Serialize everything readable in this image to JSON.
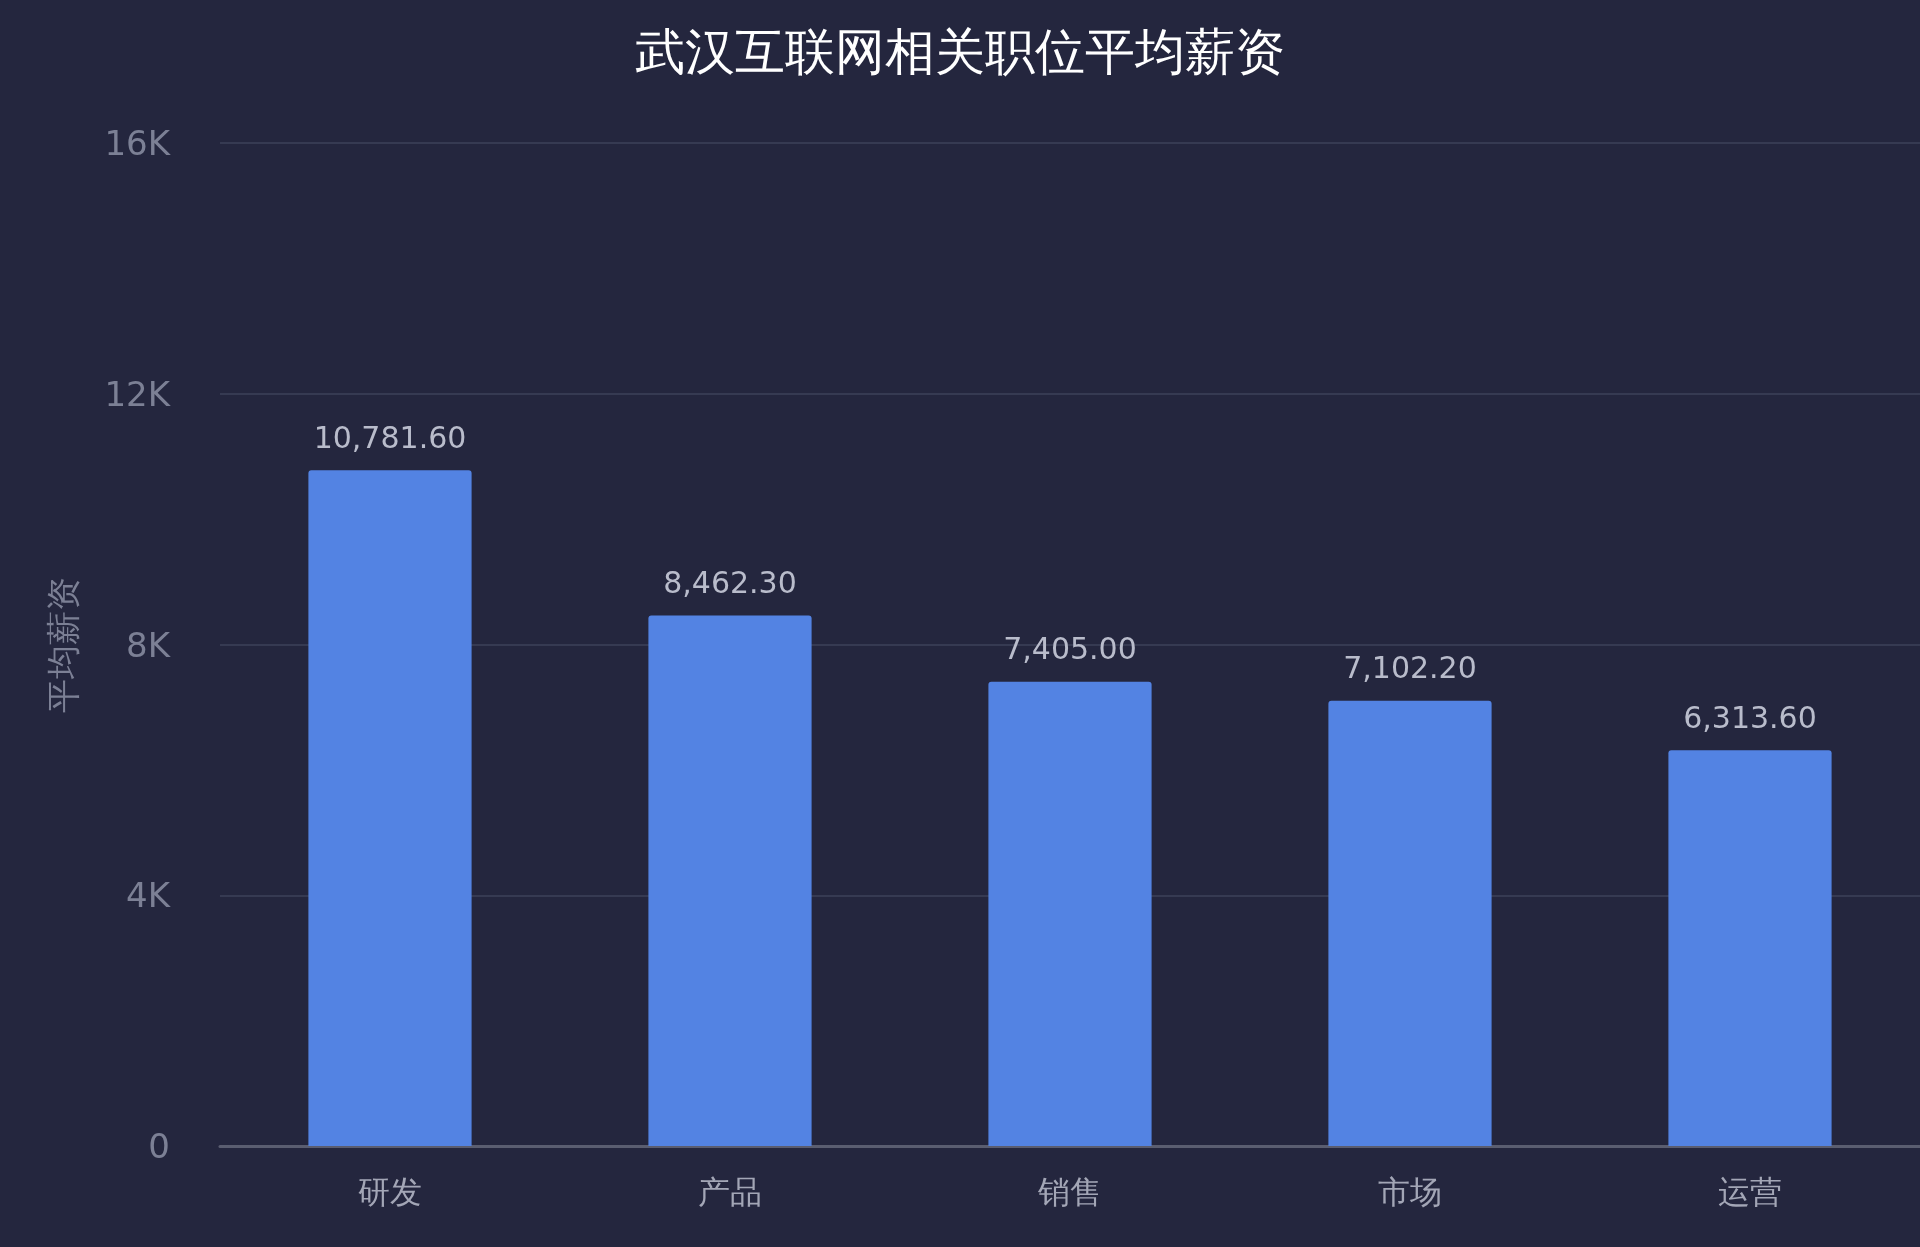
{
  "chart_data": {
    "type": "bar",
    "title": "武汉互联网相关职位平均薪资",
    "ylabel": "平均薪资",
    "categories": [
      "研发",
      "产品",
      "销售",
      "市场",
      "运营"
    ],
    "values": [
      10781.6,
      8462.3,
      7405.0,
      7102.2,
      6313.6
    ],
    "value_labels": [
      "10,781.60",
      "8,462.30",
      "7,405.00",
      "7,102.20",
      "6,313.60"
    ],
    "color": "#5383e3",
    "ylim": [
      0,
      16000
    ],
    "yticks": [
      0,
      {
        "value": 4000,
        "label": "4K"
      },
      {
        "value": 8000,
        "label": "8K"
      },
      {
        "value": 12000,
        "label": "12K"
      },
      {
        "value": 16000,
        "label": "16K"
      }
    ],
    "grid": "y"
  }
}
